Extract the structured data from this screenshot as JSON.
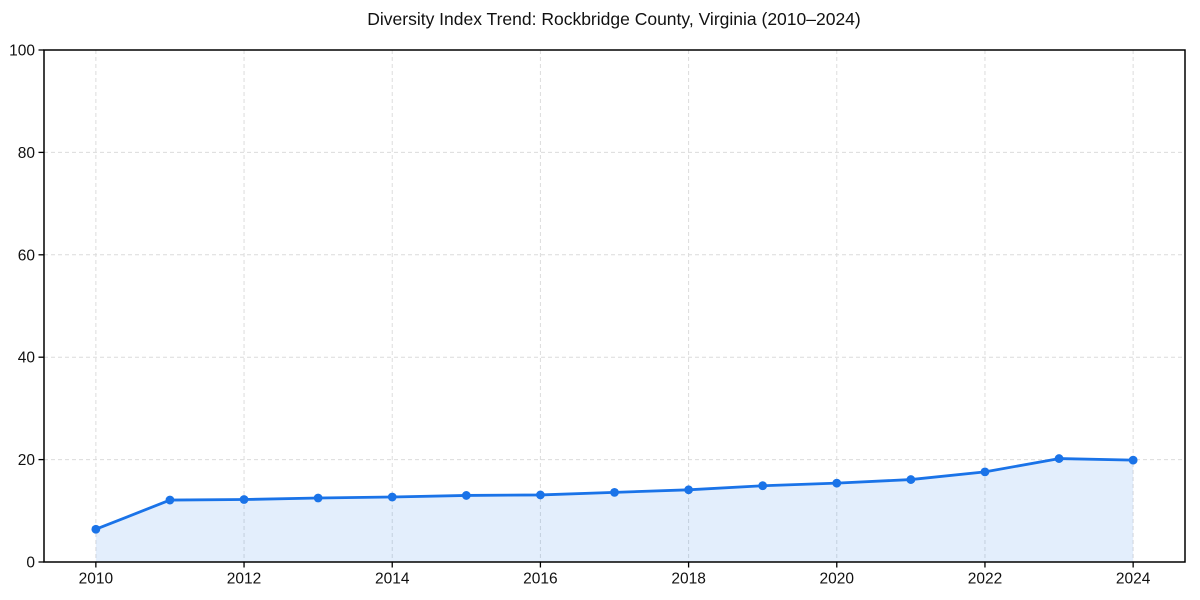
{
  "chart_data": {
    "type": "area",
    "title": "Diversity Index Trend: Rockbridge County, Virginia (2010–2024)",
    "xlabel": "",
    "ylabel": "",
    "x": [
      2010,
      2011,
      2012,
      2013,
      2014,
      2015,
      2016,
      2017,
      2018,
      2019,
      2020,
      2021,
      2022,
      2023,
      2024
    ],
    "values": [
      6.4,
      12.1,
      12.2,
      12.5,
      12.7,
      13.0,
      13.1,
      13.6,
      14.1,
      14.9,
      15.4,
      16.1,
      17.6,
      20.2,
      19.9
    ],
    "series_name": "Diversity Index",
    "xlim": [
      2009.3,
      2024.7
    ],
    "ylim": [
      0,
      100
    ],
    "xticks": [
      2010,
      2012,
      2014,
      2016,
      2018,
      2020,
      2022,
      2024
    ],
    "yticks": [
      0,
      20,
      40,
      60,
      80,
      100
    ],
    "grid": true,
    "legend": "none",
    "marker": "circle",
    "colors": {
      "line": "#1a73e8",
      "marker": "#1a73e8",
      "fill": "rgba(26,115,232,0.12)",
      "grid": "#dcdcdc",
      "axis": "#000000",
      "text": "#111111",
      "background": "#ffffff"
    }
  }
}
